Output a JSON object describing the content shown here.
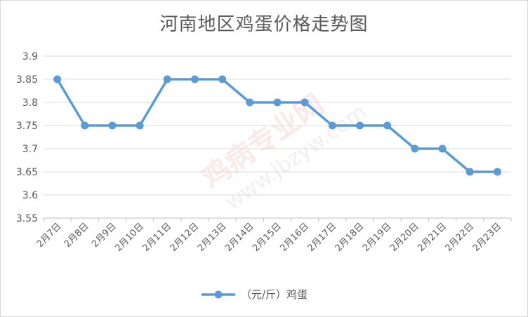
{
  "chart_data": {
    "type": "line",
    "title": "河南地区鸡蛋价格走势图",
    "categories": [
      "2月7日",
      "2月8日",
      "2月9日",
      "2月10日",
      "2月11日",
      "2月12日",
      "2月13日",
      "2月14日",
      "2月15日",
      "2月16日",
      "2月17日",
      "2月18日",
      "2月19日",
      "2月20日",
      "2月21日",
      "2月22日",
      "2月23日"
    ],
    "series": [
      {
        "name": "（元/斤）鸡蛋",
        "color": "#5b9bd5",
        "values": [
          3.85,
          3.75,
          3.75,
          3.75,
          3.85,
          3.85,
          3.85,
          3.8,
          3.8,
          3.8,
          3.75,
          3.75,
          3.75,
          3.7,
          3.7,
          3.65,
          3.65
        ]
      }
    ],
    "y_ticks": [
      "3.9",
      "3.85",
      "3.8",
      "3.75",
      "3.7",
      "3.65",
      "3.6",
      "3.55"
    ],
    "ylim": [
      3.55,
      3.9
    ],
    "grid": true,
    "legend_position": "bottom"
  },
  "watermark": {
    "main": "鸡病专业网",
    "url": "www.jbzyw.com"
  }
}
